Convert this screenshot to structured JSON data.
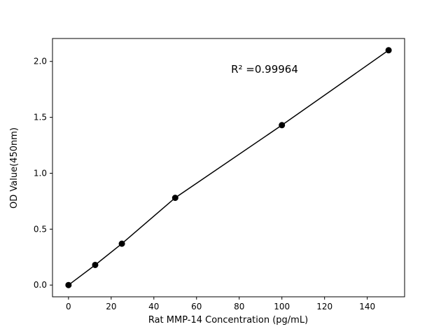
{
  "chart_data": {
    "type": "scatter",
    "x": [
      0,
      12.5,
      25,
      50,
      100,
      150
    ],
    "y": [
      0.0,
      0.18,
      0.37,
      0.78,
      1.43,
      2.1
    ],
    "line": true,
    "title": "",
    "xlabel": "Rat MMP-14 Concentration (pg/mL)",
    "ylabel": "OD Value(450nm)",
    "annotation": "R² =0.99964",
    "xticks": [
      0,
      20,
      40,
      60,
      80,
      100,
      120,
      140
    ],
    "yticks": [
      0.0,
      0.5,
      1.0,
      1.5,
      2.0
    ],
    "xlim": [
      -7.5,
      157.5
    ],
    "ylim": [
      -0.105,
      2.205
    ],
    "grid": false,
    "legend_position": "none",
    "marker_color": "#000000",
    "line_color": "#000000",
    "background_color": "#ffffff"
  }
}
